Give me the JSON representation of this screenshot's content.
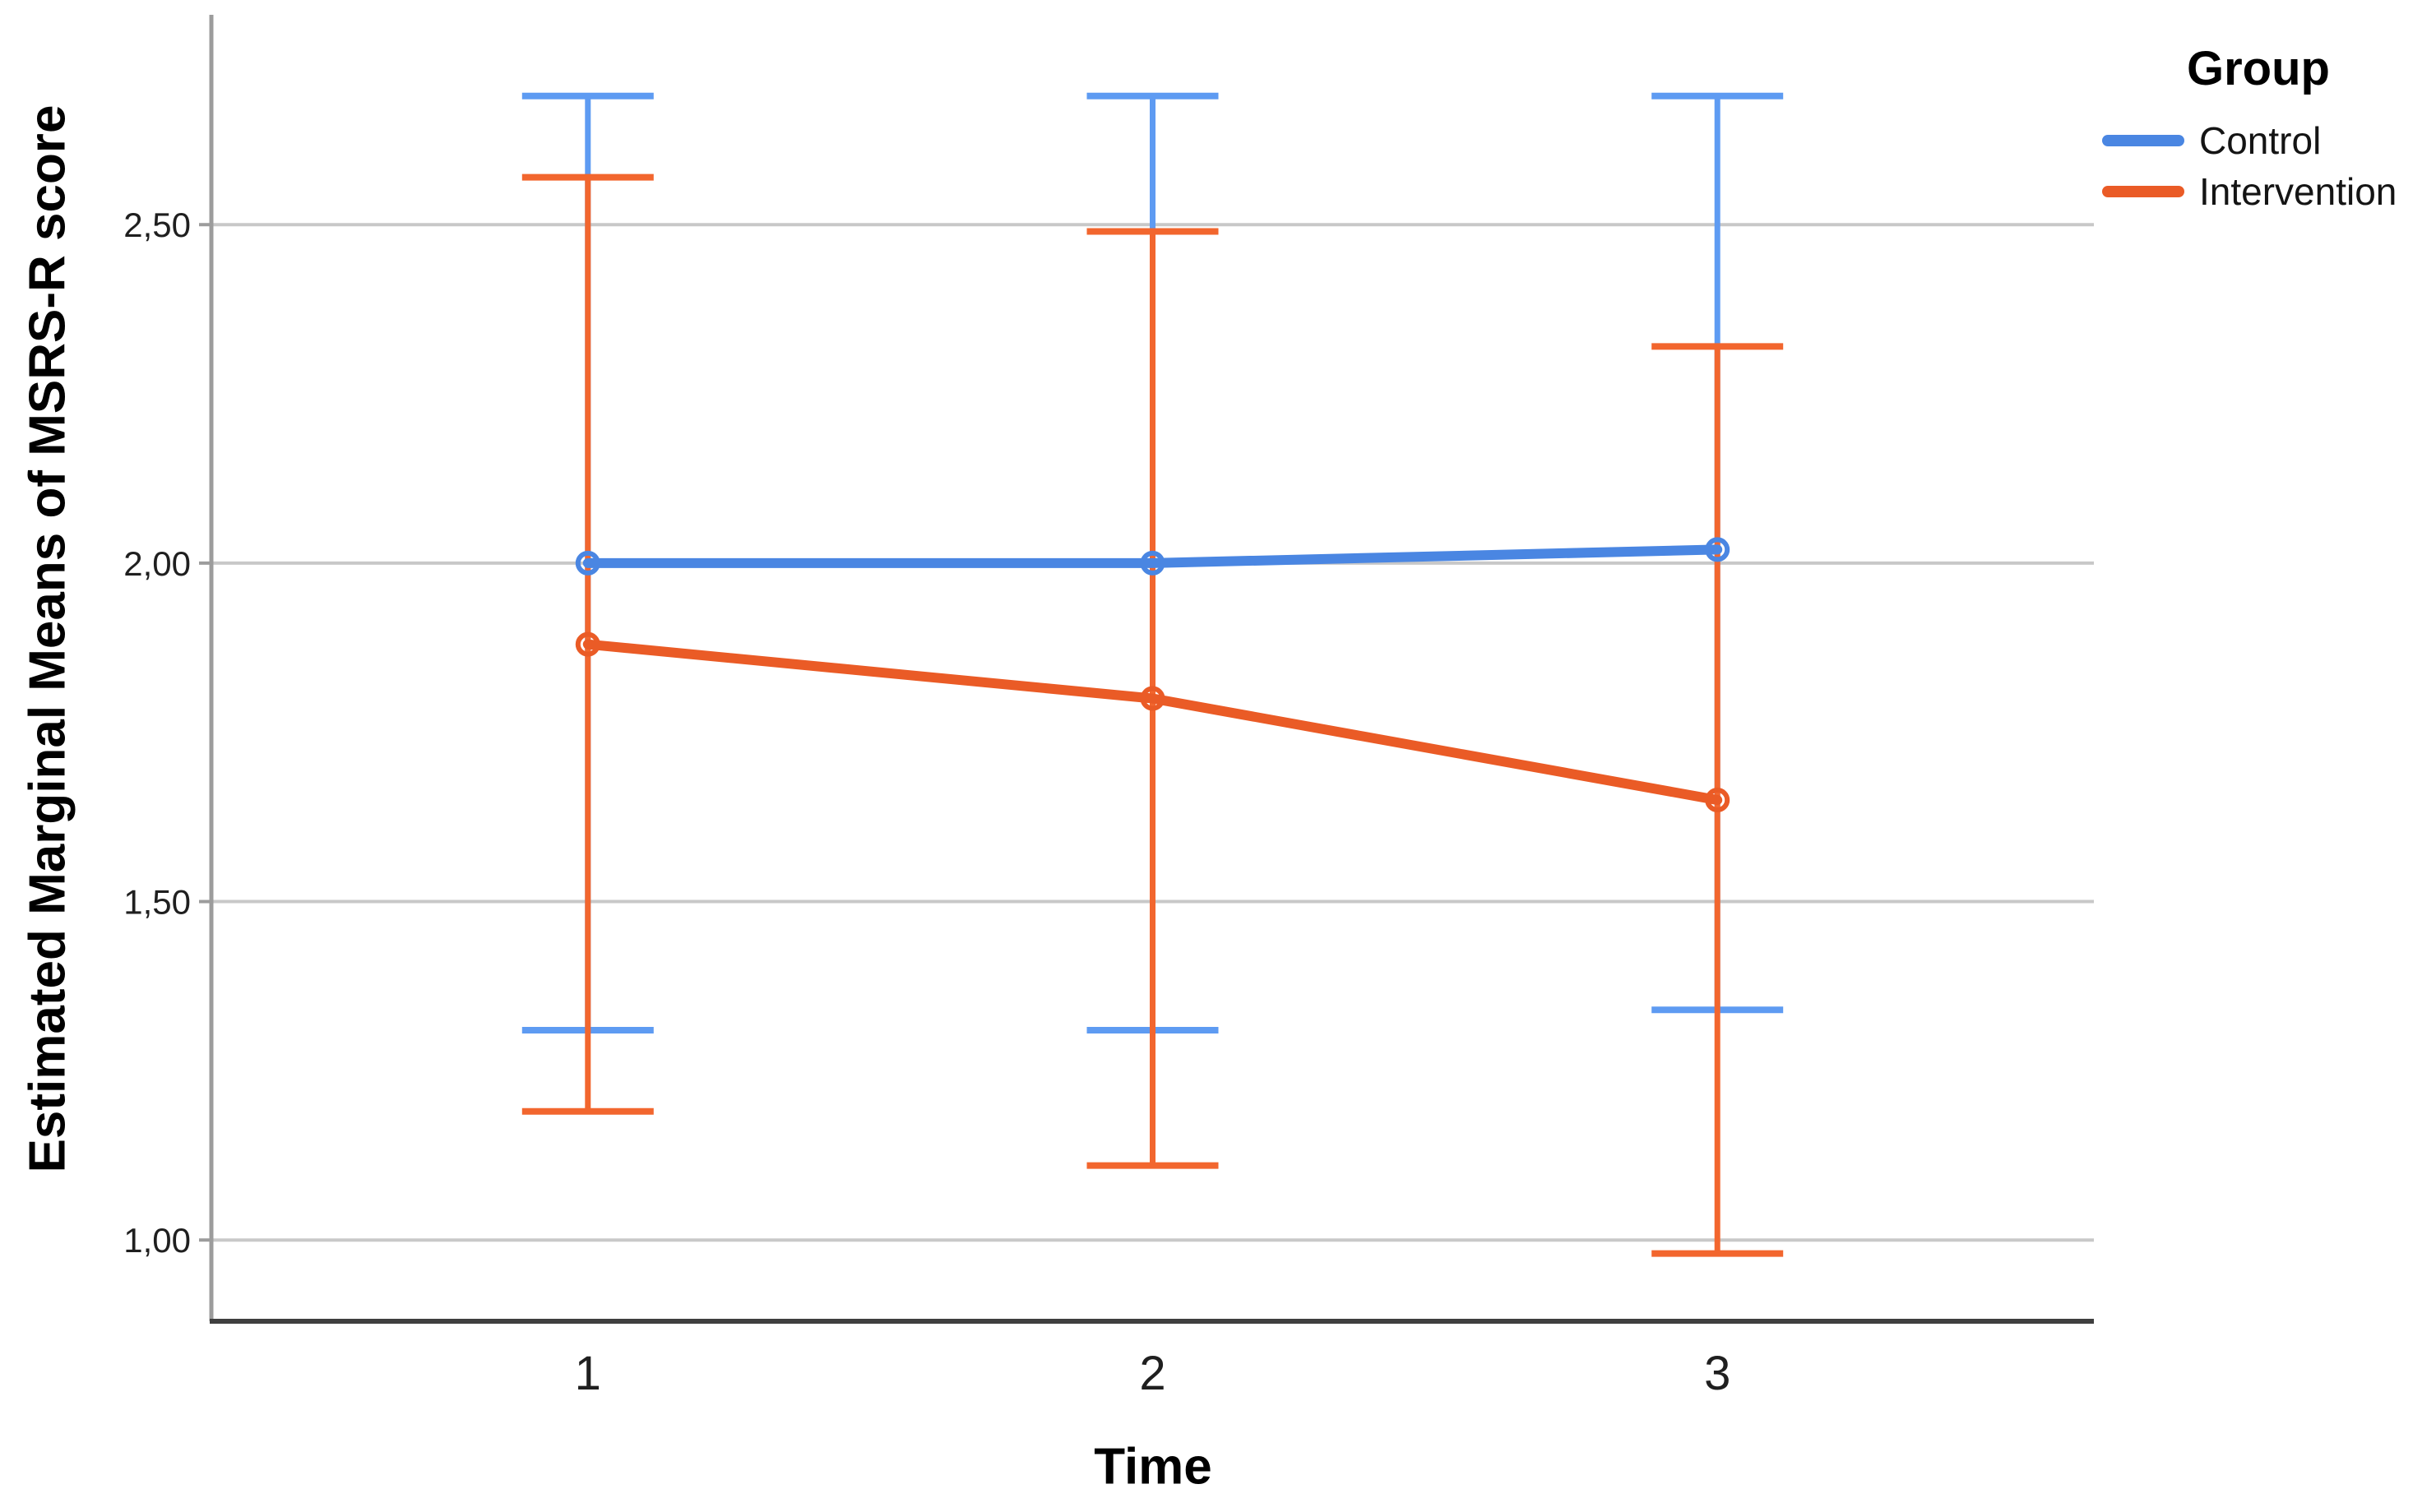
{
  "chart_data": {
    "type": "line",
    "title": "",
    "xlabel": "Time",
    "ylabel": "Estimated Marginal Means of MSRS-R score",
    "x_categories": [
      "1",
      "2",
      "3"
    ],
    "y_ticks": [
      {
        "value": 1.0,
        "label": "1,00"
      },
      {
        "value": 1.5,
        "label": "1,50"
      },
      {
        "value": 2.0,
        "label": "2,00"
      },
      {
        "value": 2.5,
        "label": "2,50"
      }
    ],
    "ylim": [
      0.88,
      2.81
    ],
    "grid": "horizontal",
    "legend": {
      "title": "Group",
      "position": "top-right"
    },
    "series": [
      {
        "name": "Control",
        "color": "#4A86E2",
        "error_bar_color": "#5E9BF2",
        "means": [
          2.0,
          2.0,
          2.02
        ],
        "ci_upper": [
          2.69,
          2.69,
          2.69
        ],
        "ci_lower": [
          1.31,
          1.31,
          1.34
        ]
      },
      {
        "name": "Intervention",
        "color": "#EA5B26",
        "error_bar_color": "#F2662E",
        "means": [
          1.88,
          1.8,
          1.65
        ],
        "ci_upper": [
          2.57,
          2.49,
          2.32
        ],
        "ci_lower": [
          1.19,
          1.11,
          0.98
        ]
      }
    ],
    "style": {
      "background": "#FFFFFF",
      "grid_color": "#C8C8C8",
      "y_axis_color": "#9C9C9C",
      "x_axis_color": "#3F3F3F",
      "tick_label_color": "#1F1F1F"
    }
  }
}
